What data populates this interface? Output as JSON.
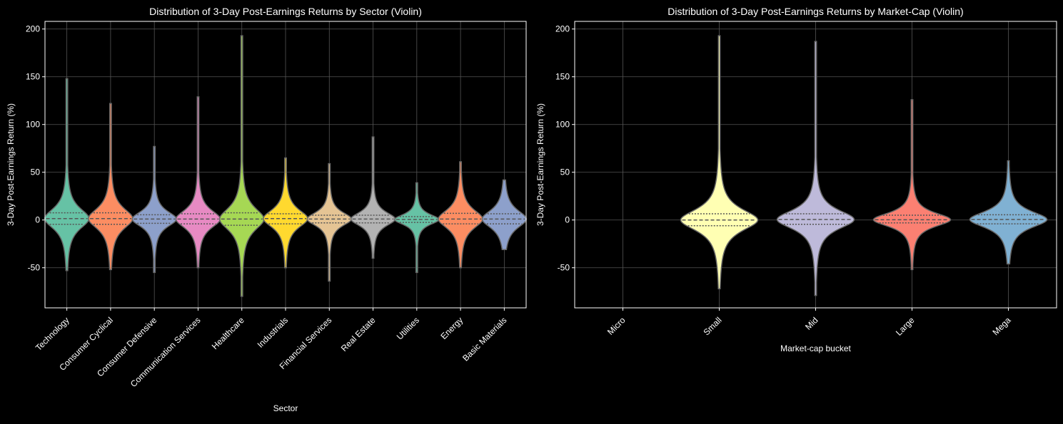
{
  "chart_data": [
    {
      "type": "violin",
      "title": "Distribution of 3-Day Post-Earnings Returns by Sector (Violin)",
      "xlabel": "Sector",
      "ylabel": "3-Day Post-Earnings Return (%)",
      "ylim": [
        -92,
        208
      ],
      "yticks": [
        -50,
        0,
        50,
        100,
        150,
        200
      ],
      "grid": true,
      "categories": [
        "Technology",
        "Consumer Cyclical",
        "Consumer Defensive",
        "Communication Services",
        "Healthcare",
        "Industrials",
        "Financial Services",
        "Real Estate",
        "Utilities",
        "Energy",
        "Basic Materials"
      ],
      "colors": [
        "#66c2a5",
        "#fc8d62",
        "#8da0cb",
        "#e78ac3",
        "#a6d854",
        "#ffd92f",
        "#e5c494",
        "#b3b3b3",
        "#66c2a5",
        "#fc8d62",
        "#8da0cb"
      ],
      "stats": [
        {
          "min": -53,
          "q1": -4.5,
          "median": 1.5,
          "q3": 7.5,
          "max": 148
        },
        {
          "min": -52,
          "q1": -4.5,
          "median": 1.5,
          "q3": 7.5,
          "max": 122
        },
        {
          "min": -55,
          "q1": -3.5,
          "median": 1,
          "q3": 5.5,
          "max": 77
        },
        {
          "min": -50,
          "q1": -4,
          "median": 1,
          "q3": 6.5,
          "max": 129
        },
        {
          "min": -80,
          "q1": -5.5,
          "median": 1,
          "q3": 7.5,
          "max": 193
        },
        {
          "min": -50,
          "q1": -4,
          "median": 1.5,
          "q3": 6.5,
          "max": 65
        },
        {
          "min": -64,
          "q1": -3,
          "median": 1,
          "q3": 5,
          "max": 59
        },
        {
          "min": -40,
          "q1": -3,
          "median": 1,
          "q3": 5,
          "max": 87
        },
        {
          "min": -55,
          "q1": -2.5,
          "median": 0.5,
          "q3": 3.5,
          "max": 39
        },
        {
          "min": -50,
          "q1": -4,
          "median": 1,
          "q3": 7,
          "max": 61
        },
        {
          "min": -31,
          "q1": -4,
          "median": 1,
          "q3": 6.5,
          "max": 42
        }
      ]
    },
    {
      "type": "violin",
      "title": "Distribution of 3-Day Post-Earnings Returns by Market-Cap (Violin)",
      "xlabel": "Market-cap bucket",
      "ylabel": "3-Day Post-Earnings Return (%)",
      "ylim": [
        -92,
        208
      ],
      "yticks": [
        -50,
        0,
        50,
        100,
        150,
        200
      ],
      "grid": true,
      "categories": [
        "Micro",
        "Small",
        "Mid",
        "Large",
        "Mega"
      ],
      "colors": [
        "#8dd3c7",
        "#ffffb3",
        "#bebada",
        "#fb8072",
        "#80b1d3"
      ],
      "stats": [
        null,
        {
          "min": -72,
          "q1": -6,
          "median": 0,
          "q3": 6.5,
          "max": 193
        },
        {
          "min": -79,
          "q1": -4.5,
          "median": 0.5,
          "q3": 6.5,
          "max": 187
        },
        {
          "min": -52,
          "q1": -3,
          "median": 0.3,
          "q3": 5,
          "max": 126
        },
        {
          "min": -46,
          "q1": -4,
          "median": 0.5,
          "q3": 5.5,
          "max": 62
        }
      ]
    }
  ]
}
